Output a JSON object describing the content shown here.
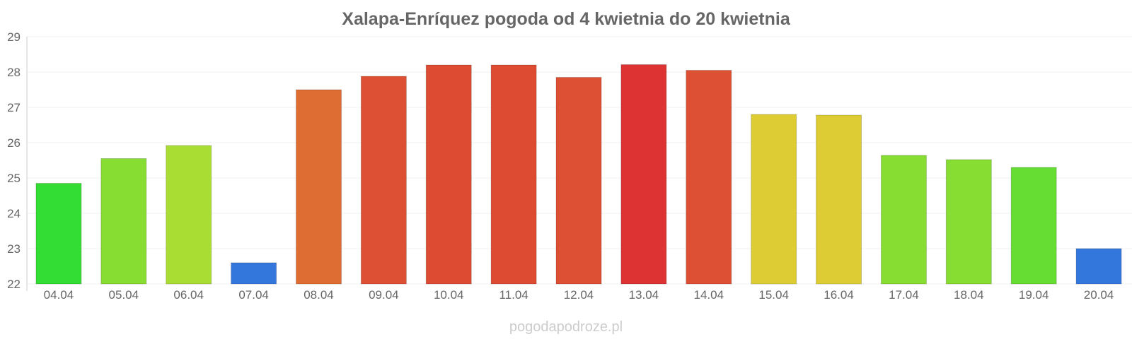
{
  "chart_data": {
    "type": "bar",
    "title": "Xalapa-Enríquez pogoda od 4 kwietnia do 20 kwietnia",
    "xlabel": "",
    "ylabel": "",
    "categories": [
      "04.04",
      "05.04",
      "06.04",
      "07.04",
      "08.04",
      "09.04",
      "10.04",
      "11.04",
      "12.04",
      "13.04",
      "14.04",
      "15.04",
      "16.04",
      "17.04",
      "18.04",
      "19.04",
      "20.04"
    ],
    "values": [
      24.85,
      25.55,
      25.92,
      22.6,
      27.5,
      27.88,
      28.2,
      28.2,
      27.85,
      28.21,
      28.05,
      26.8,
      26.78,
      25.64,
      25.52,
      25.3,
      23.0
    ],
    "colors": [
      "#33dd33",
      "#88dd33",
      "#aadd33",
      "#3377dd",
      "#dd6d33",
      "#dd5033",
      "#dd4b33",
      "#dd4b33",
      "#dd5033",
      "#dd3333",
      "#dd5033",
      "#ddcc33",
      "#ddcc33",
      "#88dd33",
      "#88dd33",
      "#66dd33",
      "#3377dd"
    ],
    "ylim": [
      22,
      29
    ],
    "yticks": [
      22,
      23,
      24,
      25,
      26,
      27,
      28,
      29
    ],
    "grid": true,
    "legend": "none"
  },
  "watermark": "pogodapodroze.pl"
}
